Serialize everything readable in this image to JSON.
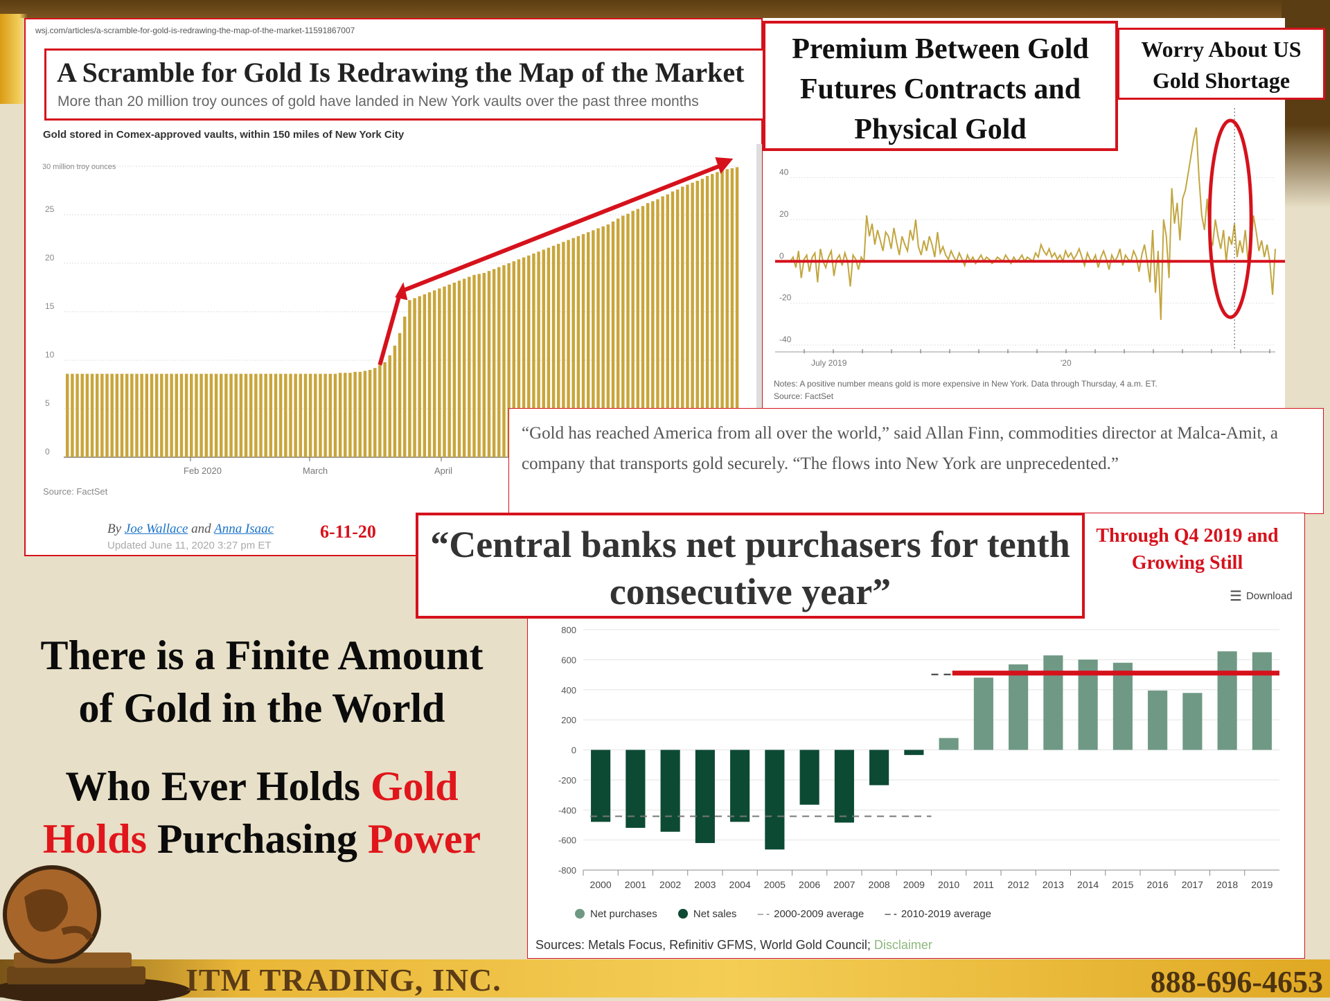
{
  "wsj": {
    "url": "wsj.com/articles/a-scramble-for-gold-is-redrawing-the-map-of-the-market-11591867007",
    "headline": "A Scramble for Gold Is Redrawing the Map of the Market",
    "subhead": "More than 20 million troy ounces of gold have landed in New York vaults over the past three months",
    "chart_title": "Gold stored in Comex-approved vaults, within 150 miles of New York City",
    "unit_label": "30 million troy ounces",
    "source": "Source: FactSet",
    "byline_prefix": "By ",
    "author1": "Joe Wallace",
    "byline_and": " and ",
    "author2": "Anna Isaac",
    "updated": "Updated June 11, 2020 3:27 pm ET",
    "date_note": "6-11-20"
  },
  "premium": {
    "title": "Premium Between Gold Futures Contracts and Physical Gold",
    "worry": "Worry About US Gold Shortage",
    "notes": "Notes: A positive number means gold is more expensive in New York. Data through Thursday, 4 a.m. ET.",
    "source": "Source: FactSet"
  },
  "quote": "“Gold has reached America from all over the world,” said Allan Finn, commodities director at Malca-Amit, a company that transports gold securely. “The flows into New York are unprecedented.”",
  "central_bank": {
    "headline": "“Central banks net purchasers for tenth consecutive year”",
    "through_note": "Through Q4 2019 and Growing Still",
    "download": "Download",
    "sources_text": "Sources: Metals Focus, Refinitiv GFMS, World Gold Council; ",
    "disclaimer": "Disclaimer",
    "legend": {
      "net_purchases": "Net purchases",
      "net_sales": "Net sales",
      "avg1": "2000-2009 average",
      "avg2": "2010-2019 average"
    }
  },
  "left_message": {
    "line1": "There is a Finite Amount of Gold in the World",
    "line2_a": "Who Ever Holds ",
    "line2_b": "Gold",
    "line2_c": "Holds",
    "line2_d": " Purchasing ",
    "line2_e": "Power"
  },
  "footer": {
    "company": "ITM TRADING, INC.",
    "phone": "888-696-4653"
  },
  "colors": {
    "gold_bar": "#c9a53a",
    "accent_red": "#d5121c",
    "net_purchase": "#6f9985",
    "net_sale": "#0d4a34",
    "premium_line": "#c2a640"
  },
  "chart_data": [
    {
      "type": "bar",
      "title": "Gold stored in Comex-approved vaults, within 150 miles of New York City",
      "ylabel": "30 million troy ounces",
      "ylim": [
        0,
        30
      ],
      "yticks": [
        "0",
        "5",
        "10",
        "15",
        "20",
        "25",
        "30 million troy ounces"
      ],
      "xticks": [
        "Feb 2020",
        "March",
        "April"
      ],
      "values": [
        8.6,
        8.6,
        8.6,
        8.6,
        8.6,
        8.6,
        8.6,
        8.6,
        8.6,
        8.6,
        8.6,
        8.6,
        8.6,
        8.6,
        8.6,
        8.6,
        8.6,
        8.6,
        8.6,
        8.6,
        8.6,
        8.6,
        8.6,
        8.6,
        8.6,
        8.6,
        8.6,
        8.6,
        8.6,
        8.6,
        8.6,
        8.6,
        8.6,
        8.6,
        8.6,
        8.6,
        8.6,
        8.6,
        8.6,
        8.6,
        8.6,
        8.6,
        8.6,
        8.6,
        8.6,
        8.6,
        8.6,
        8.6,
        8.6,
        8.6,
        8.6,
        8.6,
        8.6,
        8.6,
        8.6,
        8.7,
        8.7,
        8.7,
        8.8,
        8.8,
        8.9,
        9.0,
        9.2,
        9.5,
        9.8,
        10.5,
        11.5,
        12.8,
        14.5,
        16.2,
        16.4,
        16.6,
        16.8,
        17.0,
        17.2,
        17.4,
        17.6,
        17.8,
        18.0,
        18.2,
        18.4,
        18.6,
        18.8,
        18.9,
        19.0,
        19.2,
        19.4,
        19.6,
        19.8,
        20.0,
        20.2,
        20.4,
        20.6,
        20.8,
        21.0,
        21.2,
        21.4,
        21.6,
        21.8,
        22.0,
        22.2,
        22.4,
        22.6,
        22.8,
        23.0,
        23.2,
        23.4,
        23.6,
        23.8,
        24.0,
        24.3,
        24.6,
        24.9,
        25.1,
        25.4,
        25.6,
        25.9,
        26.2,
        26.4,
        26.6,
        26.9,
        27.1,
        27.4,
        27.6,
        27.9,
        28.1,
        28.3,
        28.5,
        28.7,
        29.0,
        29.2,
        29.4,
        29.6,
        29.7,
        29.8,
        29.9
      ],
      "source": "Source: FactSet"
    },
    {
      "type": "line",
      "title": "Premium Between Gold Futures Contracts and Physical Gold",
      "ylim": [
        -40,
        70
      ],
      "yticks": [
        "-40",
        "-20",
        "0",
        "20",
        "40"
      ],
      "xticks": [
        "July 2019",
        "'20"
      ],
      "values": [
        0,
        2,
        -3,
        5,
        -8,
        1,
        3,
        -5,
        2,
        4,
        -10,
        6,
        0,
        -3,
        2,
        5,
        -7,
        1,
        3,
        -2,
        4,
        0,
        -12,
        3,
        1,
        -4,
        2,
        0,
        22,
        12,
        18,
        8,
        15,
        10,
        5,
        14,
        12,
        6,
        16,
        9,
        3,
        12,
        8,
        5,
        15,
        10,
        20,
        7,
        3,
        10,
        5,
        12,
        8,
        2,
        14,
        4,
        7,
        3,
        1,
        5,
        2,
        0,
        4,
        1,
        -2,
        3,
        0,
        2,
        -1,
        1,
        3,
        0,
        2,
        1,
        -1,
        0,
        2,
        1,
        0,
        3,
        1,
        -1,
        2,
        0,
        1,
        3,
        0,
        2,
        1,
        0,
        4,
        2,
        8,
        5,
        3,
        6,
        2,
        4,
        1,
        3,
        0,
        5,
        2,
        4,
        1,
        3,
        6,
        2,
        -2,
        4,
        1,
        0,
        3,
        -3,
        2,
        5,
        1,
        -4,
        3,
        0,
        2,
        6,
        -2,
        3,
        1,
        0,
        5,
        2,
        -5,
        3,
        8,
        0,
        -10,
        15,
        -15,
        5,
        -28,
        20,
        12,
        -8,
        35,
        18,
        28,
        10,
        30,
        34,
        42,
        50,
        58,
        64,
        40,
        22,
        15,
        30,
        10,
        8,
        20,
        12,
        6,
        15,
        0,
        12,
        8,
        18,
        2,
        10,
        4,
        15,
        0,
        6,
        22,
        14,
        5,
        10,
        2,
        8,
        0,
        -16,
        6
      ],
      "reference_value": 0
    },
    {
      "type": "bar",
      "title": "“Central banks net purchasers for tenth consecutive year”",
      "categories": [
        "2000",
        "2001",
        "2002",
        "2003",
        "2004",
        "2005",
        "2006",
        "2007",
        "2008",
        "2009",
        "2010",
        "2011",
        "2012",
        "2013",
        "2014",
        "2015",
        "2016",
        "2017",
        "2018",
        "2019"
      ],
      "values": [
        -479,
        -519,
        -545,
        -620,
        -479,
        -663,
        -365,
        -484,
        -235,
        -34,
        79,
        481,
        569,
        629,
        601,
        580,
        395,
        379,
        656,
        650
      ],
      "ylim": [
        -800,
        800
      ],
      "yticks": [
        "-800",
        "-600",
        "-400",
        "-200",
        "0",
        "200",
        "400",
        "600",
        "800"
      ],
      "series": [
        {
          "name": "Net purchases",
          "color": "#6f9985"
        },
        {
          "name": "Net sales",
          "color": "#0d4a34"
        }
      ],
      "averages": [
        {
          "name": "2000-2009 average",
          "value": -442,
          "from": "2000",
          "to": "2009"
        },
        {
          "name": "2010-2019 average",
          "value": 502,
          "from": "2010",
          "to": "2019"
        }
      ],
      "source": "Sources: Metals Focus, Refinitiv GFMS, World Gold Council; Disclaimer"
    }
  ]
}
